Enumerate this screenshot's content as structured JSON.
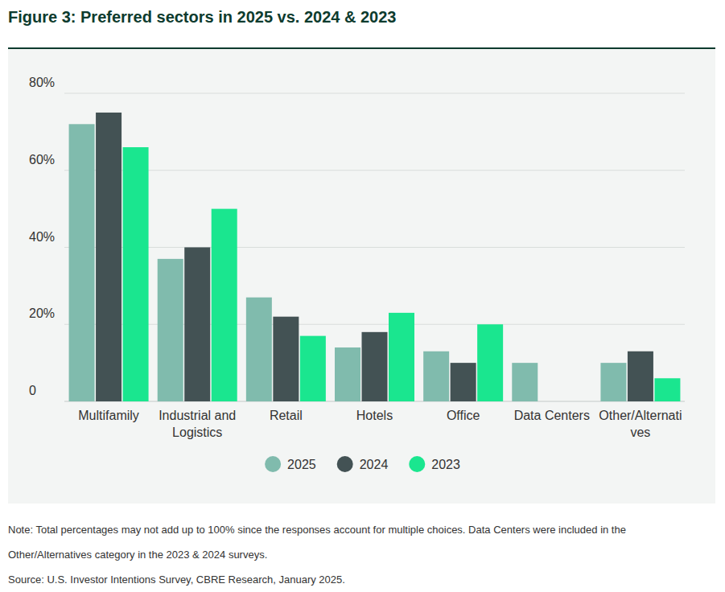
{
  "chart_data": {
    "type": "bar",
    "title": "Figure 3: Preferred sectors in 2025 vs. 2024 & 2023",
    "categories": [
      "Multifamily",
      "Industrial and Logistics",
      "Retail",
      "Hotels",
      "Office",
      "Data Centers",
      "Other/Alternatives"
    ],
    "series": [
      {
        "name": "2025",
        "color": "#80bbad",
        "values": [
          72,
          37,
          27,
          14,
          13,
          10,
          10
        ]
      },
      {
        "name": "2024",
        "color": "#435254",
        "values": [
          75,
          40,
          22,
          18,
          10,
          null,
          13
        ]
      },
      {
        "name": "2023",
        "color": "#1ae68f",
        "values": [
          66,
          50,
          17,
          23,
          20,
          null,
          6
        ]
      }
    ],
    "ylim": [
      0,
      80
    ],
    "yticks": [
      0,
      {
        "value": 20,
        "label": "20%"
      },
      {
        "value": 40,
        "label": "40%"
      },
      {
        "value": 60,
        "label": "60%"
      },
      {
        "value": 80,
        "label": "80%"
      }
    ],
    "grid": true,
    "legend": "bottom",
    "annotations": [
      "Note: Total percentages may not add up to 100% since the responses account for multiple choices. Data Centers were included in the",
      "Other/Alternatives category in the 2023 & 2024 surveys.",
      "Source: U.S. Investor Intentions Survey, CBRE Research, January 2025."
    ]
  }
}
